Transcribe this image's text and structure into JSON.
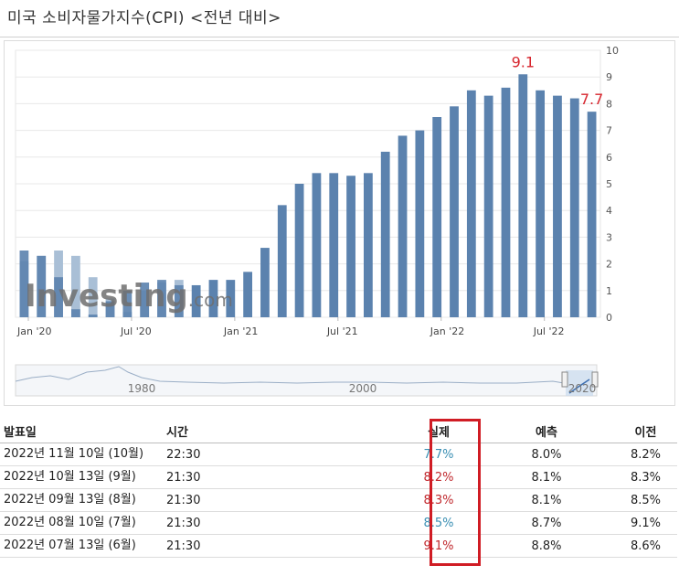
{
  "page": {
    "title": "미국 소비자물가지수(CPI) <전년 대비>"
  },
  "colors": {
    "bar_main": "#5b82ae",
    "bar_history": "#a9bfd6",
    "peak_label": "#d7262e",
    "actual_highlight": "#d01c24"
  },
  "chart_data": {
    "type": "bar",
    "title": "",
    "xlabel": "",
    "ylabel": "",
    "ylim": [
      0,
      10
    ],
    "yticks": [
      "0",
      "1",
      "2",
      "3",
      "4",
      "5",
      "6",
      "7",
      "8",
      "9",
      "10"
    ],
    "grid": true,
    "x_tick_labels": [
      "Jan '20",
      "Jul '20",
      "Jan '21",
      "Jul '21",
      "Jan '22",
      "Jul '22"
    ],
    "x_tick_index": [
      0,
      6,
      12,
      18,
      24,
      30
    ],
    "categories": [
      "2020-01",
      "2020-02",
      "2020-03",
      "2020-04",
      "2020-05",
      "2020-06",
      "2020-07",
      "2020-08",
      "2020-09",
      "2020-10",
      "2020-11",
      "2020-12",
      "2021-01",
      "2021-02",
      "2021-03",
      "2021-04",
      "2021-05",
      "2021-06",
      "2021-07",
      "2021-08",
      "2021-09",
      "2021-10",
      "2021-11",
      "2021-12",
      "2022-01",
      "2022-02",
      "2022-03",
      "2022-04",
      "2022-05",
      "2022-06",
      "2022-07",
      "2022-08",
      "2022-09",
      "2022-10"
    ],
    "values": [
      2.5,
      2.3,
      1.5,
      0.3,
      0.1,
      0.6,
      1.0,
      1.3,
      1.4,
      1.2,
      1.2,
      1.4,
      1.4,
      1.7,
      2.6,
      4.2,
      5.0,
      5.4,
      5.4,
      5.3,
      5.4,
      6.2,
      6.8,
      7.0,
      7.5,
      7.9,
      8.5,
      8.3,
      8.6,
      9.1,
      8.5,
      8.3,
      8.2,
      7.7
    ],
    "history_values": [
      2.1,
      2.3,
      2.5,
      2.3,
      1.5,
      0.7,
      0.2,
      1.0,
      1.3,
      1.4
    ],
    "annotations": [
      {
        "label": "9.1",
        "index": 29,
        "value": 9.1
      },
      {
        "label": "7.7",
        "index": 33,
        "value": 7.7
      }
    ],
    "watermark": "Investing.com",
    "navigator_labels": [
      "1980",
      "2000",
      "2020"
    ]
  },
  "table": {
    "headers": {
      "date": "발표일",
      "time": "시간",
      "actual": "실제",
      "forecast": "예측",
      "previous": "이전"
    },
    "rows": [
      {
        "date": "2022년 11월 10일 (10월)",
        "time": "22:30",
        "actual": "7.7%",
        "actual_color": "blue",
        "forecast": "8.0%",
        "previous": "8.2%"
      },
      {
        "date": "2022년 10월 13일 (9월)",
        "time": "21:30",
        "actual": "8.2%",
        "actual_color": "red",
        "forecast": "8.1%",
        "previous": "8.3%"
      },
      {
        "date": "2022년 09월 13일 (8월)",
        "time": "21:30",
        "actual": "8.3%",
        "actual_color": "red",
        "forecast": "8.1%",
        "previous": "8.5%"
      },
      {
        "date": "2022년 08월 10일 (7월)",
        "time": "21:30",
        "actual": "8.5%",
        "actual_color": "blue",
        "forecast": "8.7%",
        "previous": "9.1%"
      },
      {
        "date": "2022년 07월 13일 (6월)",
        "time": "21:30",
        "actual": "9.1%",
        "actual_color": "red",
        "forecast": "8.8%",
        "previous": "8.6%"
      }
    ]
  }
}
